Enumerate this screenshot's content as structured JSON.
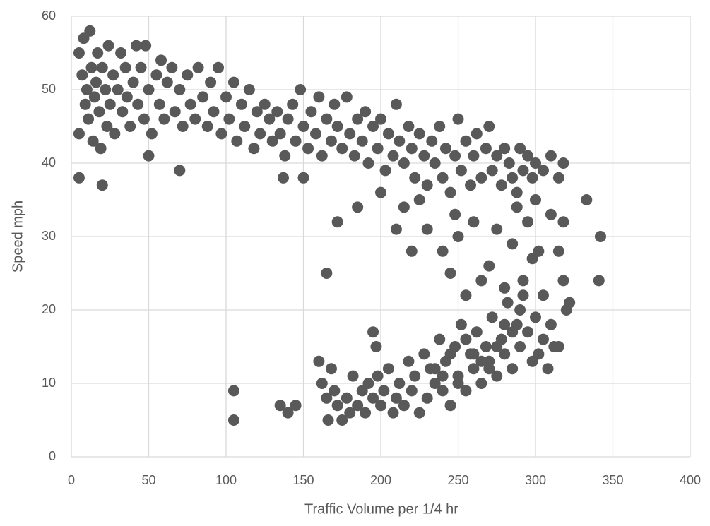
{
  "chart_data": {
    "type": "scatter",
    "x_label": "Traffic Volume per 1/4 hr",
    "y_label": "Speed mph",
    "color": "#595959",
    "grid": true,
    "xlim": [
      0,
      400
    ],
    "xticks": [
      0,
      50,
      100,
      150,
      200,
      250,
      300,
      350,
      400
    ],
    "ylim": [
      0,
      60
    ],
    "yticks": [
      0,
      10,
      20,
      30,
      40,
      50,
      60
    ],
    "x": [
      5,
      5,
      7,
      8,
      9,
      10,
      11,
      12,
      13,
      14,
      15,
      16,
      17,
      18,
      19,
      20,
      22,
      23,
      24,
      25,
      27,
      28,
      30,
      32,
      33,
      35,
      36,
      38,
      40,
      42,
      43,
      45,
      47,
      48,
      50,
      52,
      55,
      57,
      58,
      60,
      62,
      65,
      67,
      70,
      72,
      75,
      77,
      80,
      82,
      85,
      88,
      90,
      92,
      95,
      97,
      100,
      102,
      105,
      107,
      110,
      112,
      115,
      118,
      120,
      122,
      125,
      128,
      130,
      133,
      135,
      138,
      140,
      143,
      145,
      148,
      150,
      153,
      155,
      158,
      160,
      162,
      165,
      168,
      170,
      172,
      175,
      178,
      180,
      183,
      185,
      188,
      190,
      192,
      195,
      198,
      200,
      203,
      205,
      208,
      210,
      212,
      215,
      218,
      220,
      222,
      225,
      228,
      230,
      233,
      235,
      238,
      240,
      242,
      245,
      248,
      250,
      252,
      255,
      258,
      260,
      262,
      265,
      268,
      270,
      272,
      275,
      278,
      280,
      283,
      285,
      288,
      290,
      292,
      295,
      298,
      300,
      305,
      310,
      315,
      318,
      185,
      200,
      210,
      215,
      220,
      225,
      230,
      240,
      245,
      248,
      250,
      255,
      260,
      265,
      270,
      275,
      280,
      285,
      288,
      292,
      295,
      298,
      300,
      302,
      305,
      310,
      315,
      318,
      195,
      197,
      160,
      162,
      165,
      168,
      170,
      172,
      178,
      182,
      185,
      188,
      190,
      192,
      195,
      198,
      200,
      202,
      205,
      208,
      210,
      212,
      215,
      218,
      220,
      222,
      225,
      228,
      230,
      232,
      235,
      238,
      240,
      242,
      245,
      248,
      250,
      252,
      255,
      258,
      260,
      262,
      265,
      268,
      270,
      272,
      275,
      278,
      280,
      282,
      285,
      288,
      290,
      292,
      295,
      298,
      300,
      302,
      305,
      308,
      310,
      312,
      315,
      320,
      318,
      5,
      20,
      70,
      50,
      105,
      105,
      135,
      140,
      145,
      150,
      137,
      165,
      172,
      333,
      342,
      341,
      322,
      180,
      166,
      175,
      235,
      245,
      255,
      265,
      275,
      285,
      240,
      250,
      260,
      270,
      280,
      290
    ],
    "values": [
      55,
      44,
      52,
      57,
      48,
      50,
      46,
      58,
      53,
      43,
      49,
      51,
      55,
      47,
      42,
      53,
      50,
      45,
      56,
      48,
      52,
      44,
      50,
      55,
      47,
      53,
      49,
      45,
      51,
      56,
      48,
      53,
      46,
      56,
      50,
      44,
      52,
      48,
      54,
      46,
      51,
      53,
      47,
      50,
      45,
      52,
      48,
      46,
      53,
      49,
      45,
      51,
      47,
      53,
      44,
      49,
      46,
      51,
      43,
      48,
      45,
      50,
      42,
      47,
      44,
      48,
      46,
      43,
      47,
      44,
      41,
      46,
      48,
      43,
      50,
      45,
      42,
      47,
      44,
      49,
      41,
      46,
      43,
      48,
      45,
      42,
      49,
      44,
      41,
      46,
      43,
      47,
      40,
      45,
      42,
      46,
      39,
      44,
      41,
      48,
      43,
      40,
      45,
      42,
      38,
      44,
      41,
      37,
      43,
      40,
      45,
      38,
      42,
      36,
      41,
      46,
      39,
      43,
      37,
      41,
      44,
      38,
      42,
      45,
      39,
      41,
      37,
      42,
      40,
      38,
      36,
      42,
      39,
      41,
      38,
      40,
      39,
      41,
      38,
      40,
      34,
      36,
      31,
      34,
      28,
      35,
      31,
      28,
      25,
      33,
      30,
      22,
      32,
      24,
      26,
      31,
      23,
      29,
      34,
      24,
      32,
      27,
      35,
      28,
      22,
      33,
      28,
      32,
      17,
      15,
      13,
      10,
      8,
      12,
      9,
      7,
      8,
      11,
      7,
      9,
      6,
      10,
      8,
      11,
      7,
      9,
      12,
      6,
      8,
      10,
      7,
      13,
      9,
      11,
      6,
      14,
      8,
      12,
      10,
      16,
      9,
      13,
      7,
      15,
      11,
      18,
      9,
      14,
      12,
      17,
      10,
      15,
      13,
      19,
      11,
      16,
      14,
      21,
      12,
      18,
      15,
      22,
      17,
      13,
      19,
      14,
      16,
      12,
      18,
      15,
      15,
      20,
      24,
      38,
      37,
      39,
      41,
      9,
      5,
      7,
      6,
      7,
      38,
      38,
      25,
      32,
      35,
      30,
      24,
      21,
      6,
      5,
      5,
      12,
      14,
      16,
      13,
      15,
      17,
      11,
      10,
      14,
      12,
      18,
      20
    ]
  }
}
